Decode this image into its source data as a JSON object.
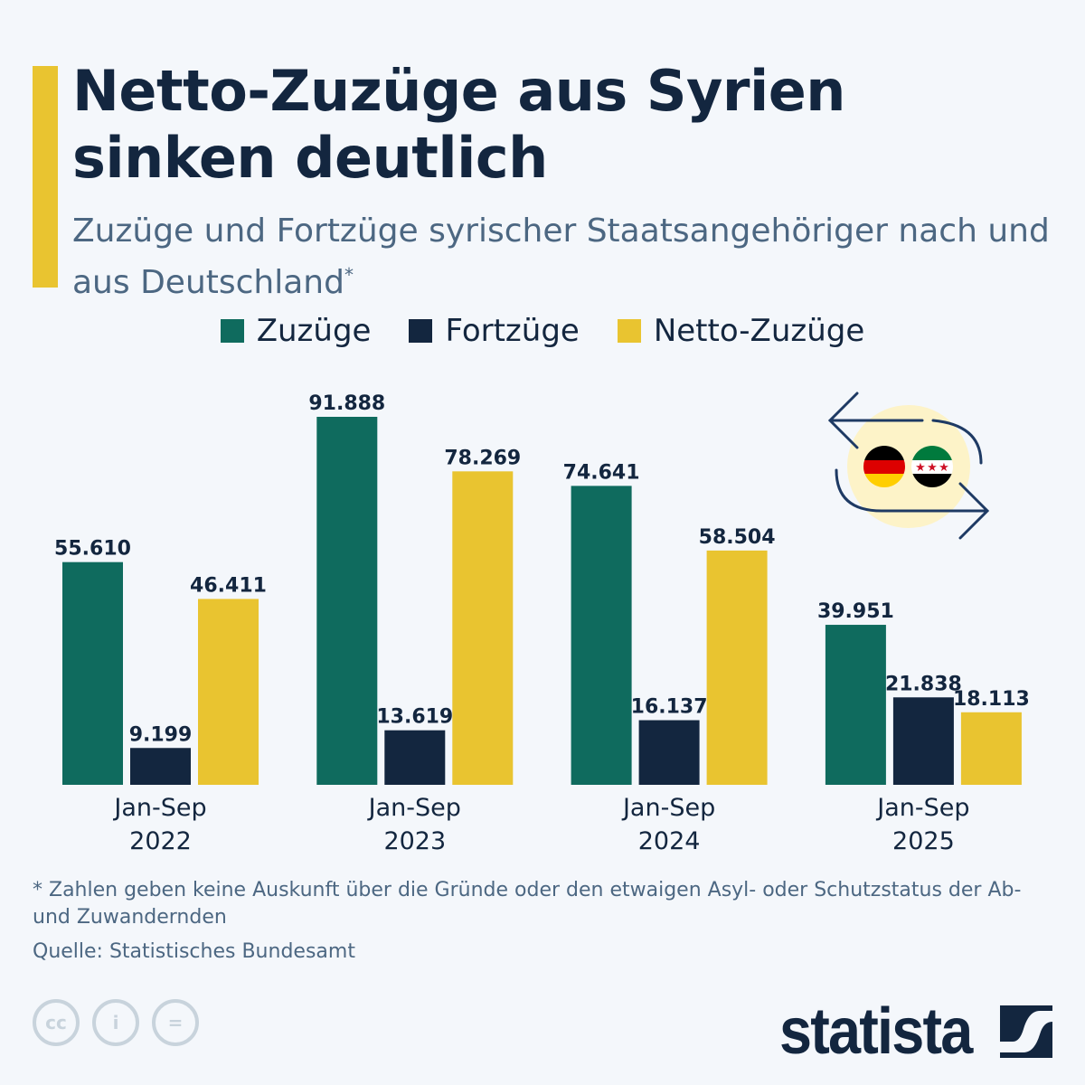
{
  "title": "Netto-Zuzüge aus Syrien sinken deutlich",
  "subtitle": "Zuzüge und Fortzüge syrischer Staatsangehöriger nach und aus Deutschland",
  "subtitle_mark": "*",
  "footnote": "* Zahlen geben keine Auskunft über die Gründe oder den etwaigen Asyl- oder Schutzstatus der Ab- und Zuwandernden",
  "source": "Quelle: Statistisches Bundesamt",
  "brand": "statista",
  "icons": [
    "cc-icon",
    "attribution-icon",
    "no-derivatives-icon",
    "exchange-arrows-icon",
    "germany-flag-icon",
    "syria-flag-icon"
  ],
  "colors": {
    "zuzuege": "#0f6b5e",
    "fortzuege": "#13263f",
    "netto": "#e9c430",
    "background": "#f4f7fb"
  },
  "chart_data": {
    "type": "bar",
    "categories": [
      [
        "Jan-Sep",
        "2022"
      ],
      [
        "Jan-Sep",
        "2023"
      ],
      [
        "Jan-Sep",
        "2024"
      ],
      [
        "Jan-Sep",
        "2025"
      ]
    ],
    "series": [
      {
        "name": "Zuzüge",
        "values": [
          55610,
          91888,
          74641,
          39951
        ],
        "labels": [
          "55.610",
          "91.888",
          "74.641",
          "39.951"
        ],
        "color": "#0f6b5e"
      },
      {
        "name": "Fortzüge",
        "values": [
          9199,
          13619,
          16137,
          21838
        ],
        "labels": [
          "9.199",
          "13.619",
          "16.137",
          "21.838"
        ],
        "color": "#13263f"
      },
      {
        "name": "Netto-Zuzüge",
        "values": [
          46411,
          78269,
          58504,
          18113
        ],
        "labels": [
          "46.411",
          "78.269",
          "58.504",
          "18.113"
        ],
        "color": "#e9c430"
      }
    ],
    "ylim": [
      0,
      91888
    ],
    "grid": false,
    "legend": "top-center"
  }
}
